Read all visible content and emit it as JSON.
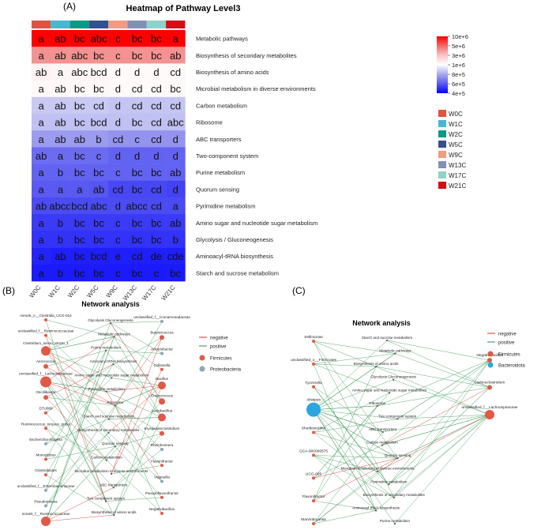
{
  "panel_labels": {
    "a": "(A)",
    "b": "(B)",
    "c": "(C)"
  },
  "heatmap_title": "Heatmap of Pathway Level3",
  "network_b_title": "Network analysis",
  "network_c_title": "Network analysis",
  "chart_data": [
    {
      "type": "heatmap",
      "title": "Heatmap of Pathway Level3",
      "columns": [
        "W0C",
        "W1C",
        "W2C",
        "W5C",
        "W9C",
        "W13C",
        "W17C",
        "W21C"
      ],
      "column_colors": [
        "#e0533e",
        "#4ab6d6",
        "#0e9a82",
        "#35508a",
        "#ef9c80",
        "#8390b4",
        "#8fd3c6",
        "#d40e12"
      ],
      "rows": [
        "Metabolic pathways",
        "Biosynthesis of secondary metabolites",
        "Biosynthesis of amino acids",
        "Microbial metabolism in diverse environments",
        "Carbon metabolism",
        "Ribosome",
        "ABC transporters",
        "Two-component system",
        "Purine metabolism",
        "Quorum sensing",
        "Pyrimidine metabolism",
        "Amino sugar and nucleotide sugar metabolism",
        "Glycolysis / Gluconeogenesis",
        "Aminoacyl-tRNA biosynthesis",
        "Starch and sucrose metabolism"
      ],
      "letters": [
        [
          "a",
          "ab",
          "bc",
          "abc",
          "c",
          "bc",
          "bc",
          "a"
        ],
        [
          "a",
          "ab",
          "abc",
          "bc",
          "c",
          "bc",
          "bc",
          "ab"
        ],
        [
          "ab",
          "a",
          "abc",
          "bcd",
          "d",
          "d",
          "d",
          "cd"
        ],
        [
          "a",
          "ab",
          "bc",
          "bc",
          "d",
          "cd",
          "cd",
          "bc"
        ],
        [
          "a",
          "ab",
          "bc",
          "cd",
          "d",
          "cd",
          "cd",
          "cd"
        ],
        [
          "a",
          "ab",
          "bc",
          "bcd",
          "d",
          "bc",
          "cd",
          "abc"
        ],
        [
          "a",
          "ab",
          "ab",
          "b",
          "cd",
          "c",
          "cd",
          "d"
        ],
        [
          "ab",
          "a",
          "bc",
          "c",
          "d",
          "d",
          "d",
          "d"
        ],
        [
          "a",
          "b",
          "bc",
          "bc",
          "c",
          "bc",
          "bc",
          "ab"
        ],
        [
          "a",
          "a",
          "a",
          "ab",
          "cd",
          "bc",
          "cd",
          "d"
        ],
        [
          "ab",
          "abcd",
          "bcd",
          "abc",
          "d",
          "abcd",
          "cd",
          "a"
        ],
        [
          "a",
          "b",
          "bc",
          "bc",
          "c",
          "bc",
          "bc",
          "ab"
        ],
        [
          "a",
          "b",
          "bc",
          "bc",
          "c",
          "bc",
          "bc",
          "b"
        ],
        [
          "a",
          "ab",
          "bc",
          "bcd",
          "e",
          "cd",
          "de",
          "cde"
        ],
        [
          "a",
          "b",
          "bc",
          "bc",
          "c",
          "bc",
          "c",
          "bc"
        ]
      ],
      "values": [
        [
          10000000,
          10000000,
          10000000,
          10000000,
          10000000,
          10000000,
          10000000,
          10000000
        ],
        [
          4000000,
          4000000,
          4000000,
          4000000,
          4000000,
          4000000,
          4000000,
          4000000
        ],
        [
          1300000,
          1200000,
          1200000,
          1200000,
          1100000,
          1100000,
          1100000,
          1100000
        ],
        [
          1150000,
          1150000,
          1150000,
          1150000,
          1100000,
          1100000,
          1100000,
          1150000
        ],
        [
          870000,
          870000,
          870000,
          870000,
          860000,
          860000,
          860000,
          860000
        ],
        [
          850000,
          850000,
          850000,
          850000,
          850000,
          850000,
          850000,
          850000
        ],
        [
          760000,
          760000,
          760000,
          760000,
          740000,
          740000,
          740000,
          740000
        ],
        [
          640000,
          640000,
          640000,
          640000,
          620000,
          620000,
          620000,
          620000
        ],
        [
          620000,
          620000,
          620000,
          620000,
          620000,
          620000,
          620000,
          620000
        ],
        [
          600000,
          600000,
          600000,
          590000,
          550000,
          550000,
          550000,
          540000
        ],
        [
          560000,
          560000,
          560000,
          560000,
          560000,
          560000,
          560000,
          560000
        ],
        [
          520000,
          520000,
          520000,
          520000,
          520000,
          520000,
          520000,
          520000
        ],
        [
          500000,
          500000,
          500000,
          500000,
          500000,
          500000,
          500000,
          500000
        ],
        [
          470000,
          460000,
          460000,
          460000,
          460000,
          460000,
          460000,
          460000
        ],
        [
          450000,
          450000,
          450000,
          450000,
          450000,
          450000,
          450000,
          450000
        ]
      ],
      "colorbar": {
        "ticks": [
          "10e+6",
          "5e+6",
          "3e+6",
          "1e+6",
          "8e+5",
          "6e+5",
          "4e+5"
        ],
        "colors": [
          "#ff0000",
          "#f26a6a",
          "#f7c6c6",
          "#ffffff",
          "#a9a9ee",
          "#5a5af2",
          "#0000ff"
        ]
      },
      "legend": [
        "W0C",
        "W1C",
        "W2C",
        "W5C",
        "W9C",
        "W13C",
        "W17C",
        "W21C"
      ]
    },
    {
      "type": "network",
      "title": "Network analysis",
      "legend_edges": [
        {
          "label": "negative",
          "color": "#d9302e"
        },
        {
          "label": "positive",
          "color": "#2e8b57"
        }
      ],
      "legend_nodes": [
        {
          "label": "Firmicutes",
          "color": "#e05a47"
        },
        {
          "label": "Proteobacteria",
          "color": "#8fa6b4"
        }
      ],
      "left_taxa": [
        "norank_o__Clostridia_UCG-014",
        "unclassified_f__Ruminococcaceae",
        "Clostridium_sensu_stricto_1",
        "Aerococcus",
        "unclassified_f__Lachnospiraceae",
        "Oscillibacter",
        "DTU089",
        "Ruminococcus_torques_group",
        "Escherichia-Shigella",
        "Monoglobus",
        "Clostridioides",
        "unclassified_f__Enterobacteriaceae",
        "Pseudomonas",
        "norank_f__Ruminococcaceae"
      ],
      "left_sizes": [
        2,
        2,
        6,
        3,
        7,
        3,
        2,
        2,
        2,
        2,
        2,
        2,
        2,
        6
      ],
      "left_phylum": [
        "F",
        "F",
        "F",
        "F",
        "F",
        "F",
        "F",
        "F",
        "P",
        "F",
        "F",
        "P",
        "P",
        "F"
      ],
      "pathways": [
        "Glycolysis Gluconeogenesis",
        "Metabolic pathways",
        "Purine metabolism",
        "Aminoacyl tRNA biosynthesis",
        "Amino sugar and nucleotide sugar metabolism",
        "Pyrimidine metabolism",
        "Ribosome",
        "Starch and sucrose metabolism",
        "Biosynthesis of secondary metabolites",
        "Quorum sensing",
        "Carbon metabolism",
        "Microbial metabolism in diverse environments",
        "ABC transporters",
        "Two component system",
        "Biosynthesis of amino acids"
      ],
      "right_taxa": [
        "unclassified_f__Comamonadaceae",
        "Butyricicoccus",
        "Acinetobacter",
        "Collinsella",
        "Bacillus",
        "Enterococcus",
        "Lactobacillus",
        "Erysipelatoclostridium",
        "Rheinheimera",
        "Flavonifractor",
        "Vogesella",
        "Pseudoflavonifractor",
        "Negativibacillus"
      ],
      "right_sizes": [
        2,
        3,
        2,
        2,
        5,
        4,
        5,
        3,
        2,
        2,
        2,
        2,
        2
      ],
      "right_phylum": [
        "P",
        "F",
        "P",
        "F",
        "F",
        "F",
        "F",
        "F",
        "P",
        "F",
        "P",
        "F",
        "F"
      ]
    },
    {
      "type": "network",
      "title": "Network analysis",
      "legend_edges": [
        {
          "label": "negative",
          "color": "#d9302e"
        },
        {
          "label": "positive",
          "color": "#2e8b57"
        }
      ],
      "legend_nodes": [
        {
          "label": "Firmicutes",
          "color": "#e05a47"
        },
        {
          "label": "Bacteroidota",
          "color": "#2ba6de"
        }
      ],
      "left_taxa": [
        "Sellimonas",
        "unclassified_o__Firmicutes",
        "Tyzzerella",
        "Alistipes",
        "Shuttleworthia",
        "GCA-900066575",
        "UCG-005",
        "Flavonifractor",
        "Marvinbryantia"
      ],
      "left_sizes": [
        2,
        2,
        2,
        9,
        2,
        2,
        2,
        2,
        2
      ],
      "left_phylum": [
        "F",
        "F",
        "F",
        "B",
        "F",
        "F",
        "F",
        "F",
        "F"
      ],
      "pathways": [
        "Starch and sucrose metabolism",
        "Metabolic pathways",
        "Biosynthesis of amino acids",
        "Glycolysis Gluconeogenesis",
        "Amino sugar and nucleotide sugar metabolism",
        "Ribosome",
        "Two component system",
        "ABC transporters",
        "Carbon metabolism",
        "Quorum sensing",
        "Microbial metabolism in diverse environments",
        "Pyrimidine metabolism",
        "Biosynthesis of secondary metabolites",
        "Aminoacyl tRNA biosynthesis",
        "Purine metabolism"
      ],
      "right_taxa": [
        "Negativibacillus",
        "Lachnoclostridium",
        "unclassified_f__Lachnospiraceae"
      ],
      "right_sizes": [
        3,
        3,
        6
      ],
      "right_phylum": [
        "F",
        "F",
        "F"
      ]
    }
  ]
}
